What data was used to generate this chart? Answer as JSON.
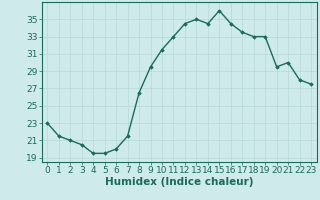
{
  "x": [
    0,
    1,
    2,
    3,
    4,
    5,
    6,
    7,
    8,
    9,
    10,
    11,
    12,
    13,
    14,
    15,
    16,
    17,
    18,
    19,
    20,
    21,
    22,
    23
  ],
  "y": [
    23.0,
    21.5,
    21.0,
    20.5,
    19.5,
    19.5,
    20.0,
    21.5,
    26.5,
    29.5,
    31.5,
    33.0,
    34.5,
    35.0,
    34.5,
    36.0,
    34.5,
    33.5,
    33.0,
    33.0,
    29.5,
    30.0,
    28.0,
    27.5
  ],
  "line_color": "#1a6b5a",
  "marker": "D",
  "markersize": 1.8,
  "linewidth": 1.0,
  "xlabel": "Humidex (Indice chaleur)",
  "xlim": [
    -0.5,
    23.5
  ],
  "ylim": [
    18.5,
    37.0
  ],
  "yticks": [
    19,
    21,
    23,
    25,
    27,
    29,
    31,
    33,
    35
  ],
  "xtick_labels": [
    "0",
    "1",
    "2",
    "3",
    "4",
    "5",
    "6",
    "7",
    "8",
    "9",
    "10",
    "11",
    "12",
    "13",
    "14",
    "15",
    "16",
    "17",
    "18",
    "19",
    "20",
    "21",
    "22",
    "23"
  ],
  "bg_color": "#ceeaea",
  "grid_color": "#b8d8d8",
  "line_dark": "#1a6b5a",
  "tick_color": "#1a6b5a",
  "label_color": "#1a6b5a",
  "font_size": 6.5,
  "xlabel_fontsize": 7.5
}
